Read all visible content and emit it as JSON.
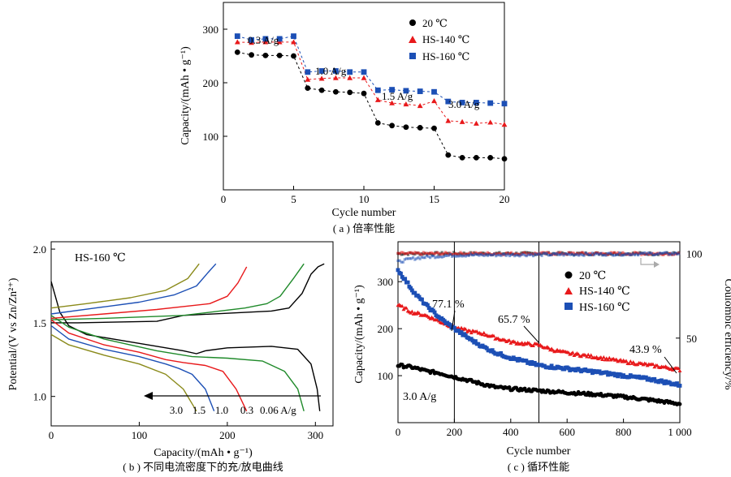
{
  "chart_data": [
    {
      "type": "scatter",
      "panel_caption": "( a ) 倍率性能",
      "xlabel": "Cycle number",
      "ylabel": "Capacity/(mAh • g⁻¹)",
      "xlim": [
        0,
        20
      ],
      "ylim": [
        0,
        350
      ],
      "xticks": [
        "0",
        "5",
        "10",
        "15",
        "20"
      ],
      "yticks": [
        "100",
        "200",
        "300"
      ],
      "legend_position": "top-right",
      "annotations": [
        "0.3 A/g",
        "1.0 A/g",
        "1.5 A/g",
        "3.0 A/g"
      ],
      "x": [
        1,
        2,
        3,
        4,
        5,
        6,
        7,
        8,
        9,
        10,
        11,
        12,
        13,
        14,
        15,
        16,
        17,
        18,
        19,
        20
      ],
      "series": [
        {
          "name": "20 ℃",
          "marker": "circle",
          "color": "#000000",
          "values": [
            257,
            252,
            251,
            251,
            250,
            190,
            186,
            183,
            182,
            180,
            125,
            120,
            117,
            116,
            115,
            65,
            60,
            60,
            60,
            58
          ]
        },
        {
          "name": "HS-140 ℃",
          "marker": "triangle",
          "color": "#e8191b",
          "values": [
            276,
            275,
            276,
            276,
            276,
            206,
            208,
            209,
            209,
            209,
            168,
            162,
            160,
            157,
            166,
            129,
            127,
            124,
            126,
            122
          ]
        },
        {
          "name": "HS-160 ℃",
          "marker": "square",
          "color": "#1c4fb5",
          "values": [
            287,
            280,
            282,
            282,
            287,
            220,
            222,
            222,
            220,
            220,
            186,
            187,
            185,
            184,
            183,
            165,
            163,
            163,
            162,
            161
          ]
        }
      ]
    },
    {
      "type": "line",
      "panel_caption": "( b ) 不同电流密度下的充/放电曲线",
      "xlabel": "Capacity/(mAh • g⁻¹)",
      "ylabel": "Potential/(V vs Zn/Zn²⁺)",
      "xlim": [
        0,
        320
      ],
      "ylim": [
        0.8,
        2.05
      ],
      "xticks": [
        "0",
        "100",
        "200",
        "300"
      ],
      "yticks": [
        "1.0",
        "1.5",
        "2.0"
      ],
      "title_label": "HS-160 ℃",
      "arrow_labels": [
        "3.0",
        "1.5",
        "1.0",
        "0.3",
        "0.06 A/g"
      ],
      "series": [
        {
          "name": "0.06 A/g",
          "color": "#000000",
          "discharge": [
            [
              0,
              1.78
            ],
            [
              10,
              1.57
            ],
            [
              20,
              1.48
            ],
            [
              40,
              1.42
            ],
            [
              80,
              1.38
            ],
            [
              120,
              1.34
            ],
            [
              150,
              1.31
            ],
            [
              165,
              1.29
            ],
            [
              175,
              1.31
            ],
            [
              200,
              1.33
            ],
            [
              250,
              1.34
            ],
            [
              280,
              1.32
            ],
            [
              295,
              1.22
            ],
            [
              302,
              1.05
            ],
            [
              305,
              0.9
            ]
          ],
          "charge": [
            [
              0,
              1.5
            ],
            [
              30,
              1.5
            ],
            [
              120,
              1.51
            ],
            [
              150,
              1.55
            ],
            [
              250,
              1.58
            ],
            [
              270,
              1.6
            ],
            [
              285,
              1.7
            ],
            [
              295,
              1.83
            ],
            [
              303,
              1.88
            ],
            [
              310,
              1.9
            ]
          ]
        },
        {
          "name": "0.3 A/g",
          "color": "#1f8a2a",
          "discharge": [
            [
              0,
              1.55
            ],
            [
              20,
              1.47
            ],
            [
              60,
              1.39
            ],
            [
              120,
              1.31
            ],
            [
              160,
              1.27
            ],
            [
              200,
              1.26
            ],
            [
              240,
              1.24
            ],
            [
              265,
              1.17
            ],
            [
              280,
              1.05
            ],
            [
              287,
              0.9
            ]
          ],
          "charge": [
            [
              0,
              1.52
            ],
            [
              60,
              1.53
            ],
            [
              150,
              1.55
            ],
            [
              220,
              1.6
            ],
            [
              245,
              1.63
            ],
            [
              260,
              1.68
            ],
            [
              275,
              1.8
            ],
            [
              287,
              1.9
            ]
          ]
        },
        {
          "name": "1.0 A/g",
          "color": "#e8191b",
          "discharge": [
            [
              0,
              1.52
            ],
            [
              20,
              1.43
            ],
            [
              60,
              1.35
            ],
            [
              100,
              1.3
            ],
            [
              130,
              1.25
            ],
            [
              150,
              1.23
            ],
            [
              175,
              1.21
            ],
            [
              195,
              1.17
            ],
            [
              210,
              1.05
            ],
            [
              222,
              0.9
            ]
          ],
          "charge": [
            [
              0,
              1.53
            ],
            [
              60,
              1.56
            ],
            [
              120,
              1.59
            ],
            [
              180,
              1.63
            ],
            [
              200,
              1.68
            ],
            [
              212,
              1.77
            ],
            [
              222,
              1.88
            ]
          ]
        },
        {
          "name": "1.5 A/g",
          "color": "#1c4fb5",
          "discharge": [
            [
              0,
              1.48
            ],
            [
              20,
              1.39
            ],
            [
              60,
              1.32
            ],
            [
              100,
              1.27
            ],
            [
              130,
              1.22
            ],
            [
              145,
              1.19
            ],
            [
              160,
              1.15
            ],
            [
              175,
              1.05
            ],
            [
              185,
              0.9
            ]
          ],
          "charge": [
            [
              0,
              1.56
            ],
            [
              50,
              1.6
            ],
            [
              100,
              1.64
            ],
            [
              140,
              1.69
            ],
            [
              165,
              1.75
            ],
            [
              178,
              1.84
            ],
            [
              187,
              1.9
            ]
          ]
        },
        {
          "name": "3.0 A/g",
          "color": "#8a8a1a",
          "discharge": [
            [
              0,
              1.42
            ],
            [
              20,
              1.35
            ],
            [
              60,
              1.28
            ],
            [
              100,
              1.22
            ],
            [
              130,
              1.15
            ],
            [
              150,
              1.05
            ],
            [
              163,
              0.92
            ],
            [
              165,
              0.9
            ]
          ],
          "charge": [
            [
              0,
              1.6
            ],
            [
              40,
              1.63
            ],
            [
              90,
              1.67
            ],
            [
              130,
              1.72
            ],
            [
              155,
              1.8
            ],
            [
              168,
              1.9
            ]
          ]
        }
      ]
    },
    {
      "type": "scatter",
      "panel_caption": "( c ) 循环性能",
      "xlabel": "Cycle number",
      "ylabel": "Capacity/(mAh • g⁻¹)",
      "y2label": "Coulombic efficiency/%",
      "xlim": [
        0,
        1000
      ],
      "ylim": [
        0,
        385
      ],
      "y2lim": [
        0,
        107
      ],
      "xticks": [
        "0",
        "200",
        "400",
        "600",
        "800",
        "1 000"
      ],
      "yticks": [
        "100",
        "200",
        "300"
      ],
      "y2ticks": [
        "50",
        "100"
      ],
      "legend_position": "top-right",
      "annotations": [
        "77.1 %",
        "65.7 %",
        "43.9 %",
        "3.0 A/g"
      ],
      "vlines": [
        200,
        500
      ],
      "series": [
        {
          "name": "20 ℃",
          "marker": "circle",
          "color": "#000000",
          "points": [
            [
              0,
              122
            ],
            [
              50,
              118
            ],
            [
              100,
              110
            ],
            [
              150,
              105
            ],
            [
              200,
              97
            ],
            [
              250,
              90
            ],
            [
              300,
              82
            ],
            [
              350,
              75
            ],
            [
              400,
              72
            ],
            [
              450,
              70
            ],
            [
              500,
              68
            ],
            [
              600,
              64
            ],
            [
              700,
              60
            ],
            [
              800,
              55
            ],
            [
              900,
              48
            ],
            [
              1000,
              40
            ]
          ]
        },
        {
          "name": "HS-140 ℃",
          "marker": "triangle",
          "color": "#e8191b",
          "points": [
            [
              0,
              250
            ],
            [
              50,
              235
            ],
            [
              100,
              228
            ],
            [
              150,
              215
            ],
            [
              200,
              203
            ],
            [
              250,
              195
            ],
            [
              300,
              190
            ],
            [
              350,
              180
            ],
            [
              400,
              172
            ],
            [
              450,
              168
            ],
            [
              500,
              165
            ],
            [
              550,
              155
            ],
            [
              600,
              148
            ],
            [
              700,
              140
            ],
            [
              800,
              130
            ],
            [
              900,
              122
            ],
            [
              1000,
              113
            ]
          ]
        },
        {
          "name": "HS-160 ℃",
          "marker": "square",
          "color": "#1c4fb5",
          "points": [
            [
              0,
              325
            ],
            [
              30,
              300
            ],
            [
              60,
              275
            ],
            [
              100,
              250
            ],
            [
              150,
              222
            ],
            [
              200,
              200
            ],
            [
              250,
              180
            ],
            [
              300,
              162
            ],
            [
              350,
              148
            ],
            [
              400,
              138
            ],
            [
              450,
              130
            ],
            [
              500,
              122
            ],
            [
              600,
              115
            ],
            [
              700,
              108
            ],
            [
              800,
              100
            ],
            [
              900,
              92
            ],
            [
              1000,
              80
            ]
          ]
        }
      ],
      "efficiency_series": [
        {
          "name": "20 ℃",
          "color": "#000000",
          "values_pct": [
            [
              0,
              100
            ],
            [
              1000,
              100
            ]
          ]
        },
        {
          "name": "HS-140 ℃",
          "color": "#e8191b",
          "values_pct": [
            [
              0,
              100
            ],
            [
              1000,
              100
            ]
          ]
        },
        {
          "name": "HS-160 ℃",
          "color": "#1c4fb5",
          "values_pct": [
            [
              0,
              95
            ],
            [
              50,
              97
            ],
            [
              100,
              98
            ],
            [
              200,
              99
            ],
            [
              1000,
              100
            ]
          ]
        }
      ]
    }
  ]
}
